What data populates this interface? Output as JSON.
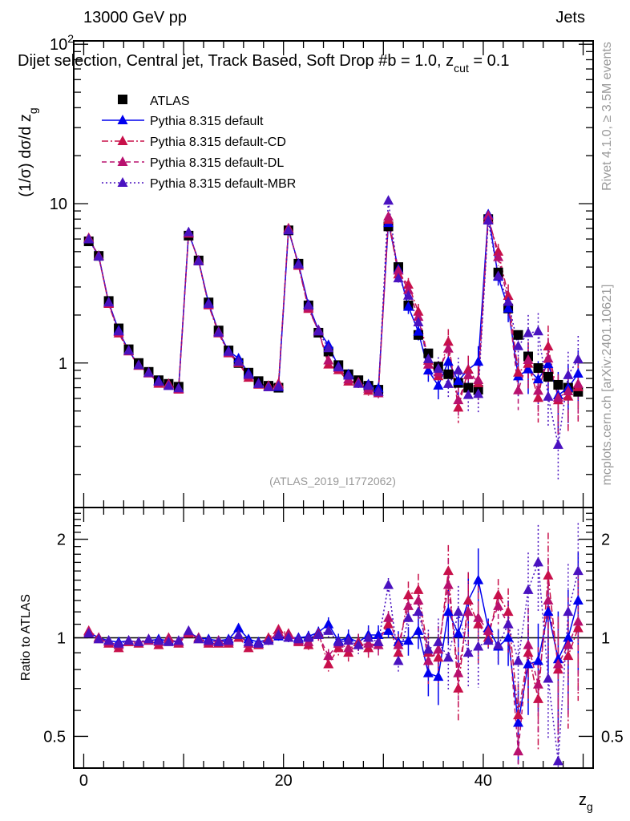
{
  "header": {
    "left": "13000 GeV pp",
    "right": "Jets"
  },
  "plot_title": "Dijet selection, Central jet, Track Based, Soft Drop #b = 1.0, z",
  "plot_title_sub": "cut",
  "plot_title_end": " = 0.1",
  "side_text": {
    "rivet": "Rivet 4.1.0, ≥ 3.5M events",
    "mcplots": "mcplots.cern.ch [arXiv:2401.10621]"
  },
  "watermark": "(ATLAS_2019_I1772062)",
  "chart_data": {
    "type": "scatter",
    "xlabel": "z",
    "xlabel_sub": "g",
    "ylabel": "(1/σ) dσ/d z",
    "ylabel_sub": "g",
    "ratio_ylabel": "Ratio to ATLAS",
    "xlim": [
      -1,
      51
    ],
    "ylim": [
      0.124,
      105
    ],
    "ratio_ylim": [
      0.4,
      2.5
    ],
    "x_ticks": [
      "0",
      "20",
      "40"
    ],
    "y_ticks": [
      "1",
      "10"
    ],
    "y_tick_top": "10",
    "y_tick_top_exp": "2",
    "ratio_ticks": [
      "0.5",
      "1",
      "2"
    ],
    "legend_placement": "top-left",
    "x": [
      0.5,
      1.5,
      2.5,
      3.5,
      4.5,
      5.5,
      6.5,
      7.5,
      8.5,
      9.5,
      10.5,
      11.5,
      12.5,
      13.5,
      14.5,
      15.5,
      16.5,
      17.5,
      18.5,
      19.5,
      20.5,
      21.5,
      22.5,
      23.5,
      24.5,
      25.5,
      26.5,
      27.5,
      28.5,
      29.5,
      30.5,
      31.5,
      32.5,
      33.5,
      34.5,
      35.5,
      36.5,
      37.5,
      38.5,
      39.5,
      40.5,
      41.5,
      42.5,
      43.5,
      44.5,
      45.5,
      46.5,
      47.5,
      48.5,
      49.5
    ],
    "atlas": {
      "name": "ATLAS",
      "color": "#000000",
      "values": [
        5.8,
        4.7,
        2.45,
        1.65,
        1.22,
        1.0,
        0.88,
        0.78,
        0.74,
        0.71,
        6.3,
        4.4,
        2.4,
        1.6,
        1.2,
        1.0,
        0.87,
        0.77,
        0.72,
        0.7,
        6.8,
        4.2,
        2.3,
        1.55,
        1.18,
        0.97,
        0.85,
        0.78,
        0.72,
        0.68,
        7.2,
        4.0,
        2.3,
        1.5,
        1.15,
        0.95,
        0.85,
        0.75,
        0.7,
        0.68,
        8.0,
        3.7,
        2.2,
        1.5,
        1.1,
        0.93,
        0.82,
        0.73,
        0.7,
        0.66
      ]
    },
    "mc_rel_err": [
      0.02,
      0.02,
      0.02,
      0.02,
      0.02,
      0.02,
      0.02,
      0.02,
      0.02,
      0.02,
      0.02,
      0.02,
      0.02,
      0.03,
      0.03,
      0.03,
      0.03,
      0.03,
      0.03,
      0.03,
      0.03,
      0.03,
      0.04,
      0.04,
      0.05,
      0.05,
      0.06,
      0.06,
      0.07,
      0.07,
      0.05,
      0.08,
      0.1,
      0.12,
      0.15,
      0.18,
      0.2,
      0.2,
      0.22,
      0.25,
      0.07,
      0.12,
      0.18,
      0.25,
      0.3,
      0.3,
      0.35,
      0.4,
      0.4,
      0.4
    ],
    "series": [
      {
        "name": "Pythia 8.315 default",
        "color": "#0000ee",
        "dash": "",
        "ratio": [
          1.04,
          1.0,
          0.98,
          0.97,
          0.98,
          0.97,
          0.98,
          0.99,
          0.98,
          0.97,
          1.04,
          1.0,
          0.99,
          0.98,
          0.99,
          1.07,
          0.99,
          0.97,
          0.99,
          1.01,
          1.0,
          1.0,
          1.01,
          1.04,
          1.1,
          0.98,
          1.0,
          0.97,
          1.02,
          1.02,
          1.05,
          0.97,
          0.98,
          1.05,
          0.78,
          0.76,
          1.2,
          1.03,
          1.3,
          1.5,
          1.07,
          0.94,
          1.0,
          0.55,
          0.83,
          0.85,
          1.2,
          0.86,
          1.0,
          1.3
        ]
      },
      {
        "name": "Pythia 8.315 default-CD",
        "color": "#c8104a",
        "dash": "8,3,2,3",
        "ratio": [
          1.05,
          1.0,
          0.96,
          0.93,
          0.97,
          0.96,
          0.99,
          0.95,
          1.0,
          0.96,
          1.03,
          1.0,
          0.96,
          0.96,
          0.96,
          1.0,
          0.93,
          0.95,
          1.0,
          1.06,
          1.03,
          0.97,
          0.95,
          1.03,
          0.83,
          0.93,
          0.9,
          0.97,
          0.93,
          0.97,
          1.1,
          0.9,
          1.35,
          1.4,
          0.9,
          0.87,
          1.6,
          0.7,
          1.3,
          1.1,
          1.0,
          1.35,
          1.2,
          0.58,
          0.9,
          0.65,
          1.55,
          0.8,
          0.88,
          1.07
        ]
      },
      {
        "name": "Pythia 8.315 default-DL",
        "color": "#b8106e",
        "dash": "6,4",
        "ratio": [
          1.04,
          0.99,
          0.97,
          0.95,
          0.98,
          0.97,
          0.98,
          0.97,
          0.99,
          0.97,
          1.04,
          0.99,
          0.97,
          0.98,
          0.97,
          1.02,
          0.96,
          0.96,
          0.98,
          1.04,
          1.02,
          0.98,
          0.97,
          1.02,
          0.88,
          0.96,
          0.93,
          0.95,
          0.96,
          0.95,
          1.15,
          0.95,
          1.25,
          1.3,
          0.85,
          0.92,
          1.45,
          0.78,
          1.2,
          1.15,
          1.05,
          1.25,
          1.1,
          0.45,
          0.95,
          0.72,
          1.3,
          0.83,
          0.95,
          1.12
        ]
      },
      {
        "name": "Pythia 8.315 default-MBR",
        "color": "#4a12c0",
        "dash": "2,3",
        "ratio": [
          1.03,
          0.99,
          0.98,
          0.96,
          0.98,
          0.97,
          0.99,
          0.98,
          0.97,
          0.98,
          1.05,
          0.99,
          0.98,
          0.97,
          0.98,
          1.02,
          0.97,
          0.96,
          0.98,
          1.02,
          1.0,
          0.99,
          1.0,
          1.02,
          1.05,
          0.97,
          0.98,
          0.95,
          1.0,
          0.97,
          1.45,
          0.85,
          1.15,
          1.2,
          0.92,
          0.97,
          0.87,
          1.2,
          0.9,
          0.94,
          0.98,
          0.95,
          1.1,
          0.85,
          1.4,
          1.7,
          0.75,
          0.42,
          1.2,
          1.6
        ]
      }
    ]
  }
}
